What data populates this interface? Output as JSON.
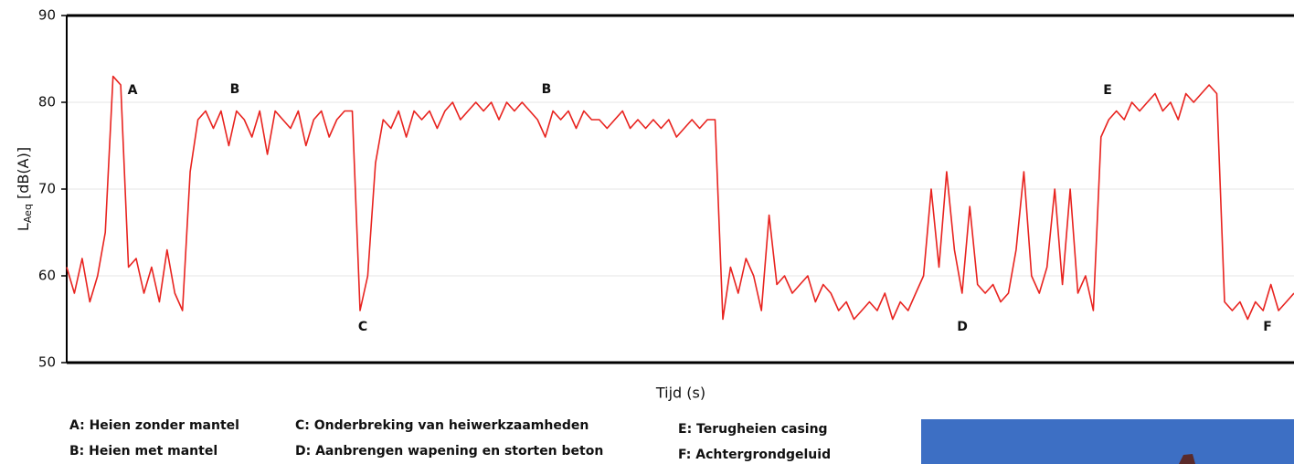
{
  "chart_data": {
    "type": "line",
    "y_label": {
      "main": "L",
      "sub": "Aeq",
      "rest": " [dB(A)]"
    },
    "x_label": "Tijd (s)",
    "color": "#e8231f",
    "ylim": [
      50,
      90
    ],
    "yticks": [
      50,
      60,
      70,
      80,
      90
    ],
    "grid": true,
    "categories": [
      null,
      null,
      null,
      null,
      null,
      null,
      null,
      null,
      null,
      null,
      null,
      null,
      null,
      null,
      null,
      null,
      null,
      null,
      null,
      null,
      null,
      null,
      null,
      null,
      null,
      null,
      null,
      null,
      null,
      null,
      null,
      null,
      null,
      null,
      null,
      null,
      null,
      null,
      null,
      null,
      null,
      null,
      null,
      null,
      null,
      null,
      null,
      null,
      null,
      null,
      null,
      null,
      null,
      null,
      null,
      null,
      null,
      null,
      null,
      null,
      null,
      null,
      null,
      null,
      null,
      null,
      null,
      null,
      null,
      null,
      null,
      null,
      null,
      null,
      null,
      null,
      null,
      null,
      null,
      null,
      null,
      null,
      null,
      null,
      null,
      null,
      null,
      null,
      null,
      null,
      null,
      null,
      null,
      null,
      null,
      null,
      null,
      null,
      null,
      null,
      null,
      null,
      null,
      null,
      null,
      null,
      null,
      null,
      null,
      null,
      null,
      null,
      null,
      null,
      null,
      null,
      null,
      null,
      null,
      null,
      null,
      null,
      null,
      null,
      null,
      null,
      null,
      null,
      null,
      null,
      null,
      null,
      null,
      null,
      null,
      null,
      null,
      null,
      null,
      null,
      null,
      null,
      null,
      null,
      null,
      null,
      null,
      null,
      null,
      null,
      null,
      null,
      null,
      null,
      null,
      null,
      null,
      null,
      null,
      null
    ],
    "values": [
      61,
      58,
      62,
      57,
      60,
      65,
      83,
      82,
      61,
      62,
      58,
      61,
      57,
      63,
      58,
      56,
      72,
      78,
      79,
      77,
      79,
      75,
      79,
      78,
      76,
      79,
      74,
      79,
      78,
      77,
      79,
      75,
      78,
      79,
      76,
      78,
      79,
      79,
      56,
      60,
      73,
      78,
      77,
      79,
      76,
      79,
      78,
      79,
      77,
      79,
      80,
      78,
      79,
      80,
      79,
      80,
      78,
      80,
      79,
      80,
      79,
      78,
      76,
      79,
      78,
      79,
      77,
      79,
      78,
      78,
      77,
      78,
      79,
      77,
      78,
      77,
      78,
      77,
      78,
      76,
      77,
      78,
      77,
      78,
      78,
      55,
      61,
      58,
      62,
      60,
      56,
      67,
      59,
      60,
      58,
      59,
      60,
      57,
      59,
      58,
      56,
      57,
      55,
      56,
      57,
      56,
      58,
      55,
      57,
      56,
      58,
      60,
      70,
      61,
      72,
      63,
      58,
      68,
      59,
      58,
      59,
      57,
      58,
      63,
      72,
      60,
      58,
      61,
      70,
      59,
      70,
      58,
      60,
      56,
      76,
      78,
      79,
      78,
      80,
      79,
      80,
      81,
      79,
      80,
      78,
      81,
      80,
      81,
      82,
      81,
      57,
      56,
      57,
      55,
      57,
      56,
      59,
      56,
      57,
      58
    ],
    "annotations": [
      "A",
      "B",
      "C",
      "B",
      "D",
      "E",
      "F"
    ],
    "notes": [
      [
        "A: Heien zonder mantel",
        "B: Heien met mantel"
      ],
      [
        "C: Onderbreking van heiwerkzaamheden",
        "D: Aanbrengen wapening en storten beton"
      ],
      [
        "E: Terugheien casing",
        "F: Achtergrondgeluid"
      ]
    ]
  }
}
